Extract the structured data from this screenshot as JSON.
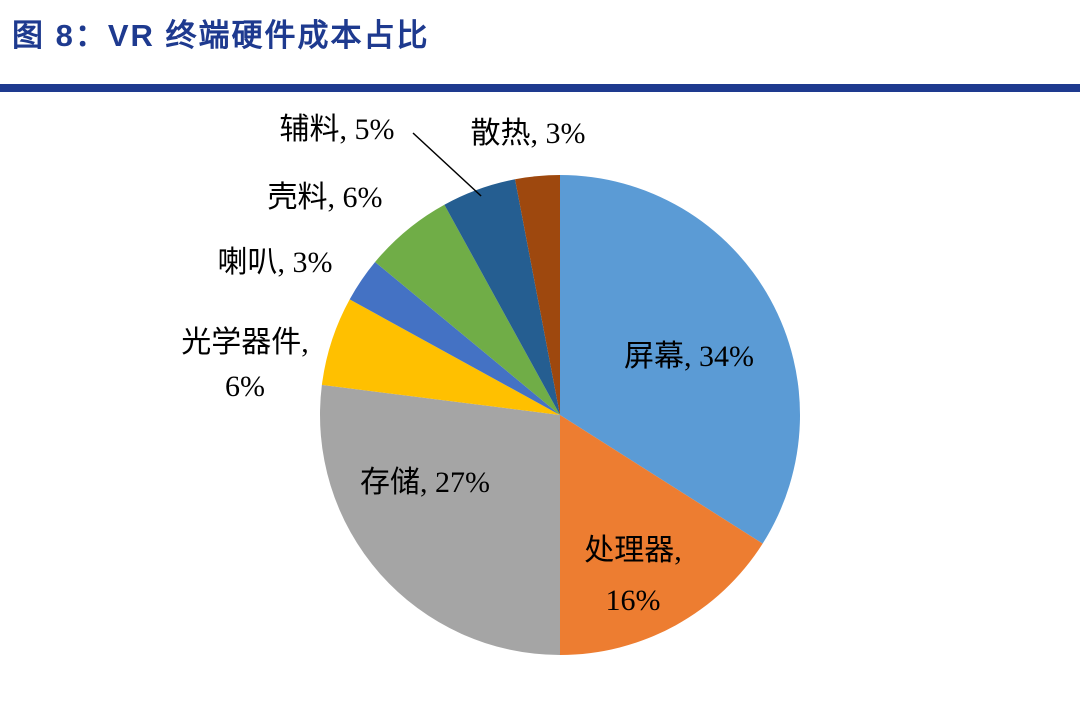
{
  "page": {
    "title": "图 8：VR 终端硬件成本占比",
    "title_color": "#1E3A8F",
    "rule_color": "#1E3A8F",
    "background": "#FFFFFF"
  },
  "chart_data": {
    "type": "pie",
    "title": "VR 终端硬件成本占比",
    "unit": "%",
    "start_angle_deg": 0,
    "direction": "clockwise",
    "legend": "none",
    "label_format": "{label}, {value}%",
    "slices": [
      {
        "label": "屏幕",
        "value": 34,
        "color": "#5B9BD5"
      },
      {
        "label": "处理器",
        "value": 16,
        "color": "#ED7D31"
      },
      {
        "label": "存储",
        "value": 27,
        "color": "#A5A5A5"
      },
      {
        "label": "光学器件",
        "value": 6,
        "color": "#FFC000"
      },
      {
        "label": "喇叭",
        "value": 3,
        "color": "#4472C4"
      },
      {
        "label": "壳料",
        "value": 6,
        "color": "#70AD47"
      },
      {
        "label": "辅料",
        "value": 5,
        "color": "#255E91"
      },
      {
        "label": "散热",
        "value": 3,
        "color": "#9E480E"
      }
    ]
  }
}
